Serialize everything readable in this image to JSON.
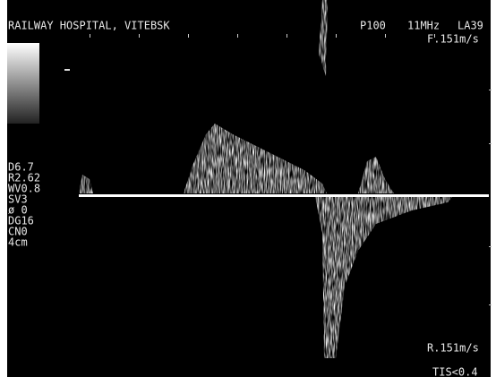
{
  "header": {
    "title": "RAILWAY HOSPITAL, VITEBSK",
    "power": "P100",
    "frequency": "11MHz",
    "probe": "LA39"
  },
  "scale": {
    "forward": "F.151m/s",
    "reverse": "R.151m/s"
  },
  "parameters": [
    "D6.7",
    "R2.62",
    "WV0.8",
    "SV3",
    "ø 0",
    "DG16",
    "CN0",
    "4cm"
  ],
  "footer": {
    "tis": "TIS<0.4"
  }
}
